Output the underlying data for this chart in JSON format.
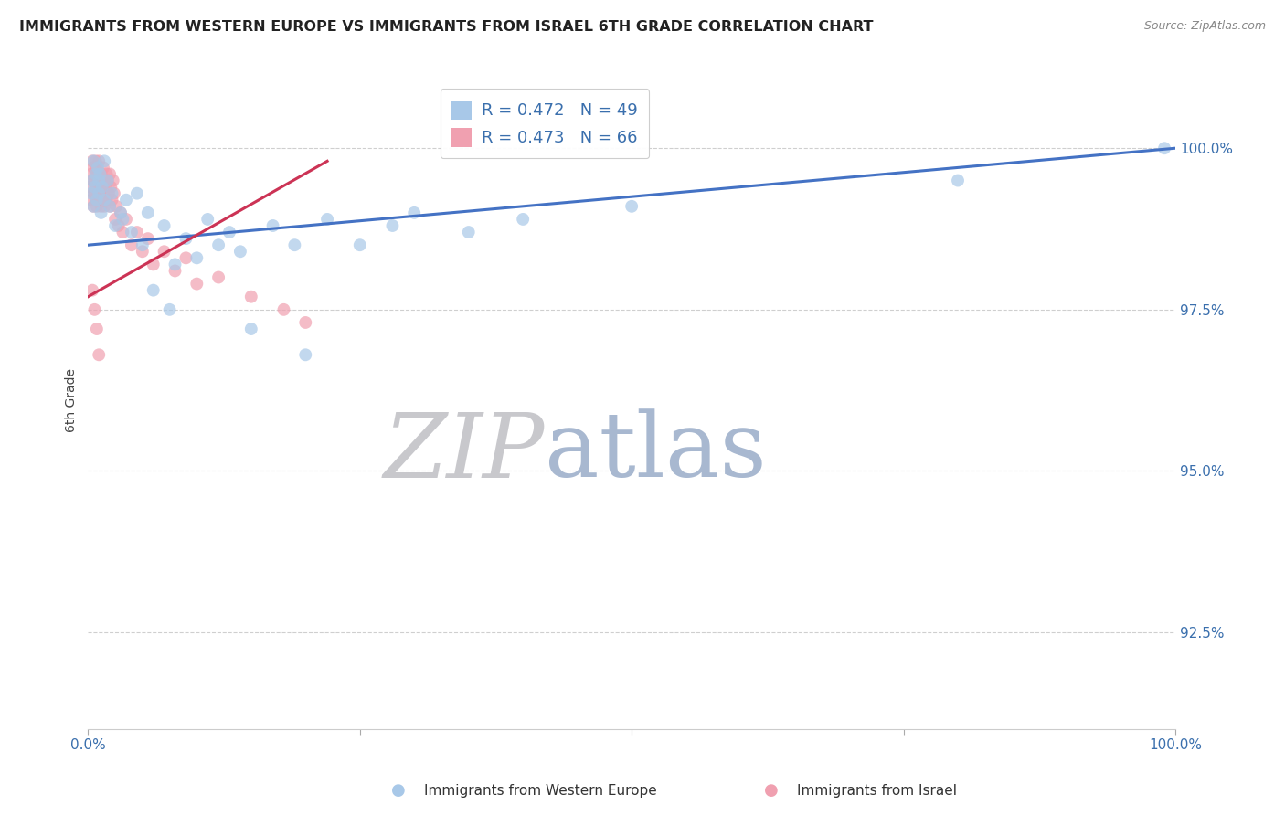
{
  "title": "IMMIGRANTS FROM WESTERN EUROPE VS IMMIGRANTS FROM ISRAEL 6TH GRADE CORRELATION CHART",
  "source_text": "Source: ZipAtlas.com",
  "ylabel": "6th Grade",
  "legend_label_blue": "Immigrants from Western Europe",
  "legend_label_pink": "Immigrants from Israel",
  "R_blue": 0.472,
  "N_blue": 49,
  "R_pink": 0.473,
  "N_pink": 66,
  "ytick_labels": [
    "92.5%",
    "95.0%",
    "97.5%",
    "100.0%"
  ],
  "ytick_values": [
    92.5,
    95.0,
    97.5,
    100.0
  ],
  "xlim": [
    0.0,
    100.0
  ],
  "ylim": [
    91.0,
    101.2
  ],
  "color_blue": "#a8c8e8",
  "color_pink": "#f0a0b0",
  "color_blue_line": "#4472c4",
  "color_pink_line": "#cc3355",
  "watermark_zip_color": "#c8c8cc",
  "watermark_atlas_color": "#a8b8d0",
  "background_color": "#ffffff",
  "scatter_alpha": 0.7,
  "scatter_size": 100,
  "blue_x": [
    0.3,
    0.4,
    0.5,
    0.5,
    0.6,
    0.7,
    0.8,
    0.9,
    1.0,
    1.0,
    1.1,
    1.2,
    1.3,
    1.5,
    1.5,
    1.8,
    2.0,
    2.2,
    2.5,
    3.0,
    3.2,
    3.5,
    4.0,
    4.5,
    5.0,
    5.5,
    6.0,
    7.0,
    7.5,
    8.0,
    9.0,
    10.0,
    11.0,
    12.0,
    13.0,
    14.0,
    15.0,
    17.0,
    19.0,
    20.0,
    22.0,
    25.0,
    28.0,
    30.0,
    35.0,
    40.0,
    50.0,
    80.0,
    99.0
  ],
  "blue_y": [
    99.3,
    99.5,
    99.1,
    99.8,
    99.4,
    99.6,
    99.2,
    99.7,
    99.5,
    99.3,
    99.6,
    99.0,
    99.4,
    99.8,
    99.2,
    99.5,
    99.1,
    99.3,
    98.8,
    99.0,
    98.9,
    99.2,
    98.7,
    99.3,
    98.5,
    99.0,
    97.8,
    98.8,
    97.5,
    98.2,
    98.6,
    98.3,
    98.9,
    98.5,
    98.7,
    98.4,
    97.2,
    98.8,
    98.5,
    96.8,
    98.9,
    98.5,
    98.8,
    99.0,
    98.7,
    98.9,
    99.1,
    99.5,
    100.0
  ],
  "pink_x": [
    0.2,
    0.3,
    0.3,
    0.4,
    0.4,
    0.5,
    0.5,
    0.5,
    0.6,
    0.6,
    0.7,
    0.7,
    0.7,
    0.8,
    0.8,
    0.8,
    0.9,
    0.9,
    1.0,
    1.0,
    1.0,
    1.0,
    1.1,
    1.1,
    1.2,
    1.2,
    1.3,
    1.3,
    1.4,
    1.4,
    1.5,
    1.5,
    1.6,
    1.7,
    1.7,
    1.8,
    1.9,
    2.0,
    2.0,
    2.1,
    2.2,
    2.3,
    2.4,
    2.5,
    2.6,
    2.8,
    3.0,
    3.2,
    3.5,
    4.0,
    4.5,
    5.0,
    5.5,
    6.0,
    7.0,
    8.0,
    9.0,
    10.0,
    12.0,
    15.0,
    18.0,
    20.0,
    0.4,
    0.6,
    0.8,
    1.0
  ],
  "pink_y": [
    99.4,
    99.6,
    99.2,
    99.8,
    99.5,
    99.3,
    99.7,
    99.1,
    99.5,
    99.3,
    99.6,
    99.2,
    99.8,
    99.4,
    99.1,
    99.7,
    99.5,
    99.3,
    99.6,
    99.2,
    99.4,
    99.8,
    99.3,
    99.5,
    99.1,
    99.6,
    99.4,
    99.2,
    99.7,
    99.3,
    99.5,
    99.1,
    99.4,
    99.6,
    99.2,
    99.5,
    99.3,
    99.6,
    99.1,
    99.4,
    99.2,
    99.5,
    99.3,
    98.9,
    99.1,
    98.8,
    99.0,
    98.7,
    98.9,
    98.5,
    98.7,
    98.4,
    98.6,
    98.2,
    98.4,
    98.1,
    98.3,
    97.9,
    98.0,
    97.7,
    97.5,
    97.3,
    97.8,
    97.5,
    97.2,
    96.8
  ]
}
